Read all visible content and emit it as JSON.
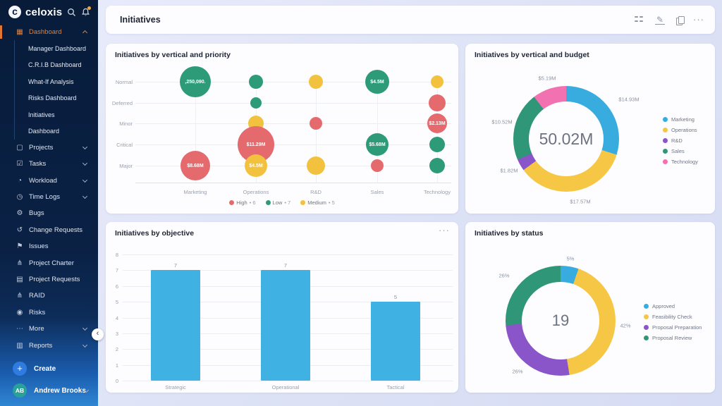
{
  "sidebar": {
    "logo": "celoxis",
    "items": [
      {
        "label": "Dashboard",
        "icon": "dashboard",
        "type": "top",
        "active": true,
        "caret": "up"
      },
      {
        "label": "Manager Dashboard",
        "type": "sub"
      },
      {
        "label": "C.R.I.B Dashboard",
        "type": "sub"
      },
      {
        "label": "What-If Analysis",
        "type": "sub"
      },
      {
        "label": "Risks Dashboard",
        "type": "sub"
      },
      {
        "label": "Initiatives",
        "type": "sub"
      },
      {
        "label": "Dashboard",
        "type": "sub"
      },
      {
        "label": "Projects",
        "icon": "projects",
        "type": "top",
        "caret": "down"
      },
      {
        "label": "Tasks",
        "icon": "tasks",
        "type": "top",
        "caret": "down"
      },
      {
        "label": "Workload",
        "icon": "workload",
        "type": "top",
        "caret": "down"
      },
      {
        "label": "Time Logs",
        "icon": "time-logs",
        "type": "top",
        "caret": "down"
      },
      {
        "label": "Bugs",
        "icon": "bug",
        "type": "top"
      },
      {
        "label": "Change Requests",
        "icon": "change-requests",
        "type": "top"
      },
      {
        "label": "Issues",
        "icon": "flag",
        "type": "top"
      },
      {
        "label": "Project Charter",
        "icon": "hierarchy",
        "type": "top"
      },
      {
        "label": "Project Requests",
        "icon": "document",
        "type": "top"
      },
      {
        "label": "RAID",
        "icon": "hierarchy",
        "type": "top"
      },
      {
        "label": "Risks",
        "icon": "risk",
        "type": "top"
      },
      {
        "label": "More",
        "icon": "more",
        "type": "top",
        "caret": "down"
      },
      {
        "label": "Reports",
        "icon": "reports",
        "type": "top",
        "caret": "down"
      }
    ],
    "create_label": "Create",
    "user": {
      "initials": "AB",
      "name": "Andrew Brooks"
    }
  },
  "icons": {
    "dashboard": "▦",
    "projects": "▢",
    "tasks": "☑",
    "workload": "◔",
    "time-logs": "◷",
    "bug": "⚙",
    "change-requests": "↺",
    "flag": "⚑",
    "hierarchy": "⋔",
    "document": "▤",
    "risk": "◉",
    "more": "⋯",
    "reports": "▥"
  },
  "header": {
    "title": "Initiatives"
  },
  "chart_data": [
    {
      "id": "priority_bubble",
      "type": "scatter",
      "title": "Initiatives by vertical and priority",
      "x_categories": [
        "Marketing",
        "Operations",
        "R&D",
        "Sales",
        "Technology"
      ],
      "y_categories": [
        "Normal",
        "Deferred",
        "Minor",
        "Critical",
        "Major"
      ],
      "series": [
        {
          "name": "High",
          "color": "#e56a6e",
          "count": 6
        },
        {
          "name": "Low",
          "color": "#2d9b78",
          "count": 7
        },
        {
          "name": "Medium",
          "color": "#f2c23e",
          "count": 5
        }
      ],
      "legend_bullet": "•",
      "bubbles": [
        {
          "x": "Marketing",
          "y": "Normal",
          "series": "Low",
          "r": 22,
          "label": ",250,090."
        },
        {
          "x": "Marketing",
          "y": "Major",
          "series": "High",
          "r": 21,
          "label": "$8.68M"
        },
        {
          "x": "Operations",
          "y": "Normal",
          "series": "Low",
          "r": 10,
          "label": ""
        },
        {
          "x": "Operations",
          "y": "Deferred",
          "series": "Low",
          "r": 8,
          "label": ""
        },
        {
          "x": "Operations",
          "y": "Minor",
          "series": "Medium",
          "r": 11,
          "label": ""
        },
        {
          "x": "Operations",
          "y": "Critical",
          "series": "High",
          "r": 26,
          "label": "$11.29M"
        },
        {
          "x": "Operations",
          "y": "Major",
          "series": "Medium",
          "r": 16,
          "label": "$4.5M"
        },
        {
          "x": "R&D",
          "y": "Normal",
          "series": "Medium",
          "r": 10,
          "label": ""
        },
        {
          "x": "R&D",
          "y": "Minor",
          "series": "High",
          "r": 9,
          "label": ""
        },
        {
          "x": "R&D",
          "y": "Major",
          "series": "Medium",
          "r": 13,
          "label": ""
        },
        {
          "x": "Sales",
          "y": "Normal",
          "series": "Low",
          "r": 17,
          "label": "$4.5M"
        },
        {
          "x": "Sales",
          "y": "Critical",
          "series": "Low",
          "r": 16,
          "label": "$5.68M"
        },
        {
          "x": "Sales",
          "y": "Major",
          "series": "High",
          "r": 9,
          "label": ""
        },
        {
          "x": "Technology",
          "y": "Normal",
          "series": "Medium",
          "r": 9,
          "label": ""
        },
        {
          "x": "Technology",
          "y": "Deferred",
          "series": "High",
          "r": 12,
          "label": ""
        },
        {
          "x": "Technology",
          "y": "Minor",
          "series": "High",
          "r": 14,
          "label": "$2.13M"
        },
        {
          "x": "Technology",
          "y": "Critical",
          "series": "Low",
          "r": 11,
          "label": ""
        },
        {
          "x": "Technology",
          "y": "Major",
          "series": "Low",
          "r": 11,
          "label": ""
        }
      ]
    },
    {
      "id": "budget_donut",
      "type": "pie",
      "title": "Initiatives by vertical and budget",
      "center": "50.02M",
      "slices": [
        {
          "name": "Marketing",
          "label": "$14.93M",
          "value": 14.93,
          "color": "#38abdf"
        },
        {
          "name": "Operations",
          "label": "$17.57M",
          "value": 17.57,
          "color": "#f6c645"
        },
        {
          "name": "R&D",
          "label": "$1.82M",
          "value": 1.82,
          "color": "#8a55c9"
        },
        {
          "name": "Sales",
          "label": "$10.52M",
          "value": 10.52,
          "color": "#2f9678"
        },
        {
          "name": "Technology",
          "label": "$5.19M",
          "value": 5.19,
          "color": "#f171b1"
        }
      ]
    },
    {
      "id": "objective_bar",
      "type": "bar",
      "title": "Initiatives by objective",
      "categories": [
        "Strategic",
        "Operational",
        "Tactical"
      ],
      "values": [
        7,
        7,
        5
      ],
      "bar_color": "#3fb1e3",
      "ylim": [
        0,
        8
      ],
      "yticks": [
        0,
        1,
        2,
        3,
        4,
        5,
        6,
        7,
        8
      ]
    },
    {
      "id": "status_donut",
      "type": "pie",
      "title": "Initiatives by status",
      "center": "19",
      "slices": [
        {
          "name": "Approved",
          "label": "5%",
          "value": 5.3,
          "color": "#38abdf"
        },
        {
          "name": "Feasibility Check",
          "label": "42%",
          "value": 42.1,
          "color": "#f6c645"
        },
        {
          "name": "Proposal Preparation",
          "label": "26%",
          "value": 26.3,
          "color": "#8a55c9"
        },
        {
          "name": "Proposal Review",
          "label": "26%",
          "value": 26.3,
          "color": "#2f9678"
        }
      ]
    }
  ]
}
